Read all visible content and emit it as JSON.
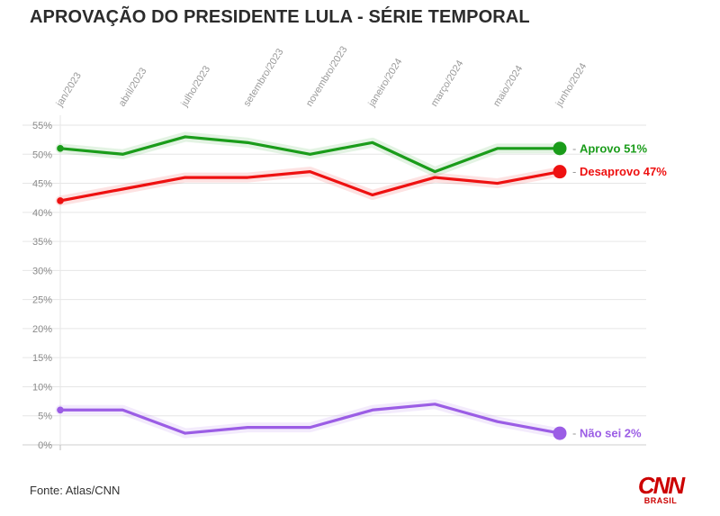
{
  "header": {
    "title": "APROVAÇÃO DO PRESIDENTE LULA - SÉRIE TEMPORAL"
  },
  "footer": {
    "source": "Fonte: Atlas/CNN"
  },
  "logo": {
    "main": "CNN",
    "sub": "BRASIL"
  },
  "chart_data": {
    "type": "line",
    "title": "APROVAÇÃO DO PRESIDENTE LULA - SÉRIE TEMPORAL",
    "xlabel": "",
    "ylabel": "",
    "ylim": [
      0,
      55
    ],
    "grid": true,
    "y_ticks": [
      "0%",
      "5%",
      "10%",
      "15%",
      "20%",
      "25%",
      "30%",
      "35%",
      "40%",
      "45%",
      "50%",
      "55%"
    ],
    "x_ticks": [
      "jan/2023",
      "abril/2023",
      "julho/2023",
      "setembro/2023",
      "novembro/2023",
      "janeiro/2024",
      "março/2024",
      "maio/2024",
      "junho/2024"
    ],
    "series": [
      {
        "name": "Aprovo",
        "end_label": "Aprovo 51%",
        "color": "#1a9c1a",
        "values": [
          51,
          50,
          53,
          52,
          50,
          52,
          47,
          51,
          51
        ]
      },
      {
        "name": "Desaprovo",
        "end_label": "Desaprovo 47%",
        "color": "#ee1111",
        "values": [
          42,
          44,
          46,
          46,
          47,
          43,
          46,
          45,
          47
        ]
      },
      {
        "name": "Não sei",
        "end_label": "Não sei 2%",
        "color": "#9b5de5",
        "values": [
          6,
          6,
          2,
          3,
          3,
          6,
          7,
          4,
          2
        ]
      }
    ]
  }
}
